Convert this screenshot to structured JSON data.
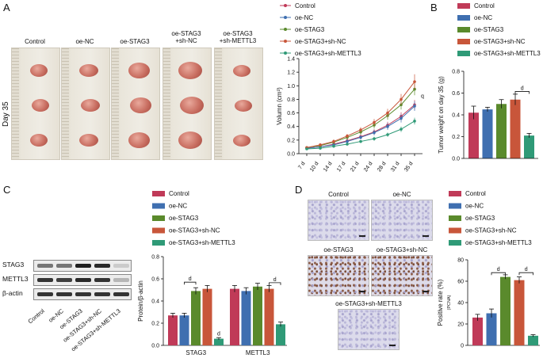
{
  "panels": {
    "A": "A",
    "B": "B",
    "C": "C",
    "D": "D"
  },
  "colors": {
    "control": "#c03a58",
    "oe_nc": "#3f6fb0",
    "oe_stag3": "#5a8a2c",
    "oe_stag3_shnc": "#c8563a",
    "oe_stag3_shmettl3": "#2f9a77"
  },
  "groups": [
    "Control",
    "oe-NC",
    "oe-STAG3",
    "oe-STAG3+sh-NC",
    "oe-STAG3+sh-METTL3"
  ],
  "panelA": {
    "day_label": "Day 35",
    "photo_labels": [
      "Control",
      "oe-NC",
      "oe-STAG3",
      "oe-STAG3\n+sh-NC",
      "oe-STAG3\n+sh-METTL3"
    ]
  },
  "chart_data": [
    {
      "id": "A-line",
      "type": "line",
      "x": [
        "7 d",
        "10 d",
        "14 d",
        "17 d",
        "21 d",
        "24 d",
        "28 d",
        "31 d",
        "35 d"
      ],
      "ylabel": "Volumn (cm³)",
      "ylim": [
        0,
        1.4
      ],
      "yticks": [
        "0.0",
        "0.2",
        "0.4",
        "0.6",
        "0.8",
        "1.0",
        "1.2",
        "1.4"
      ],
      "annotation": "q",
      "series": [
        {
          "name": "Control",
          "values": [
            0.08,
            0.1,
            0.14,
            0.19,
            0.25,
            0.32,
            0.42,
            0.55,
            0.72
          ],
          "err": [
            0.02,
            0.02,
            0.02,
            0.03,
            0.03,
            0.04,
            0.05,
            0.06,
            0.07
          ]
        },
        {
          "name": "oe-NC",
          "values": [
            0.08,
            0.1,
            0.13,
            0.18,
            0.24,
            0.31,
            0.4,
            0.52,
            0.7
          ],
          "err": [
            0.02,
            0.02,
            0.02,
            0.03,
            0.03,
            0.04,
            0.05,
            0.06,
            0.07
          ]
        },
        {
          "name": "oe-STAG3",
          "values": [
            0.09,
            0.12,
            0.17,
            0.24,
            0.32,
            0.42,
            0.56,
            0.72,
            0.95
          ],
          "err": [
            0.02,
            0.02,
            0.03,
            0.03,
            0.04,
            0.05,
            0.06,
            0.07,
            0.09
          ]
        },
        {
          "name": "oe-STAG3+sh-NC",
          "values": [
            0.09,
            0.13,
            0.18,
            0.26,
            0.35,
            0.46,
            0.6,
            0.8,
            1.06
          ],
          "err": [
            0.02,
            0.02,
            0.03,
            0.03,
            0.04,
            0.05,
            0.06,
            0.08,
            0.11
          ]
        },
        {
          "name": "oe-STAG3+sh-METTL3",
          "values": [
            0.07,
            0.08,
            0.11,
            0.14,
            0.18,
            0.22,
            0.28,
            0.36,
            0.48
          ],
          "err": [
            0.01,
            0.01,
            0.02,
            0.02,
            0.02,
            0.03,
            0.03,
            0.04,
            0.05
          ]
        }
      ],
      "legend_placement": "top"
    },
    {
      "id": "B-bar",
      "type": "bar",
      "categories": [
        "Control",
        "oe-NC",
        "oe-STAG3",
        "oe-STAG3+sh-NC",
        "oe-STAG3+sh-METTL3"
      ],
      "values": [
        0.42,
        0.45,
        0.5,
        0.54,
        0.21
      ],
      "err": [
        0.06,
        0.02,
        0.04,
        0.05,
        0.02
      ],
      "ylabel": "Tumor weight on day 35 (g)",
      "ylim": [
        0,
        0.8
      ],
      "yticks": [
        "0.0",
        "0.2",
        "0.4",
        "0.6",
        "0.8"
      ],
      "annotation": "d"
    },
    {
      "id": "C-bar",
      "type": "bar",
      "categories": [
        "STAG3",
        "METTL3"
      ],
      "series": [
        {
          "name": "Control",
          "values": [
            0.27,
            0.51
          ],
          "err": [
            0.02,
            0.03
          ]
        },
        {
          "name": "oe-NC",
          "values": [
            0.27,
            0.49
          ],
          "err": [
            0.02,
            0.03
          ]
        },
        {
          "name": "oe-STAG3",
          "values": [
            0.49,
            0.53
          ],
          "err": [
            0.03,
            0.03
          ]
        },
        {
          "name": "oe-STAG3+sh-NC",
          "values": [
            0.51,
            0.51
          ],
          "err": [
            0.03,
            0.03
          ]
        },
        {
          "name": "oe-STAG3+sh-METTL3",
          "values": [
            0.06,
            0.19
          ],
          "err": [
            0.01,
            0.02
          ]
        }
      ],
      "ylabel": "Protein/β-actin",
      "ylim": [
        0,
        0.8
      ],
      "yticks": [
        "0.0",
        "0.2",
        "0.4",
        "0.6",
        "0.8"
      ],
      "annotation": "d"
    },
    {
      "id": "D-bar",
      "type": "bar",
      "categories": [
        "Control",
        "oe-NC",
        "oe-STAG3",
        "oe-STAG3+sh-NC",
        "oe-STAG3+sh-METTL3"
      ],
      "values": [
        26,
        30,
        64,
        61,
        9
      ],
      "err": [
        3,
        4,
        2,
        3,
        1
      ],
      "ylabel": "Positive rate (%)",
      "ylabel2": "(PCNA)",
      "ylim": [
        0,
        80
      ],
      "yticks": [
        "0",
        "20",
        "40",
        "60",
        "80"
      ],
      "annotation": "d"
    }
  ],
  "panelC": {
    "blot_labels": [
      "STAG3",
      "METTL3",
      "β-actin"
    ],
    "lane_labels": [
      "Control",
      "oe-NC",
      "oe-STAG3",
      "oe-STAG3+sh-NC",
      "oe-STAG3+sh-METTL3"
    ]
  },
  "panelD": {
    "ihc_labels": [
      "Control",
      "oe-NC",
      "oe-STAG3",
      "oe-STAG3+sh-NC",
      "oe-STAG3+sh-METTL3"
    ]
  }
}
